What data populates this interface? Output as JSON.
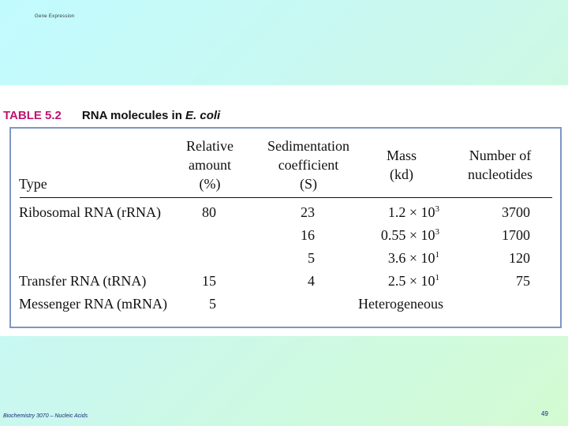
{
  "slide": {
    "header": "Gene Expression",
    "footer": "Biochemistry 3070 – Nucleic Acids",
    "page_number": "49"
  },
  "table": {
    "number": "TABLE 5.2",
    "title_prefix": "RNA molecules in ",
    "title_species": "E. coli",
    "headers": {
      "type": "Type",
      "relative": [
        "Relative",
        "amount",
        "(%)"
      ],
      "sediment": [
        "Sedimentation",
        "coefficient",
        "(S)"
      ],
      "mass": [
        "Mass",
        "(kd)"
      ],
      "nucleotides": [
        "Number of",
        "nucleotides"
      ]
    },
    "rows": [
      {
        "type": "Ribosomal RNA (rRNA)",
        "relative": "80",
        "sediment": "23",
        "mass_base": "1.2 × 10",
        "mass_exp": "3",
        "nucleotides": "3700"
      },
      {
        "type": "",
        "relative": "",
        "sediment": "16",
        "mass_base": "0.55 × 10",
        "mass_exp": "3",
        "nucleotides": "1700"
      },
      {
        "type": "",
        "relative": "",
        "sediment": "5",
        "mass_base": "3.6 × 10",
        "mass_exp": "1",
        "nucleotides": "120"
      },
      {
        "type": "Transfer RNA (tRNA)",
        "relative": "15",
        "sediment": "4",
        "mass_base": "2.5 × 10",
        "mass_exp": "1",
        "nucleotides": "75"
      },
      {
        "type": "Messenger RNA (mRNA)",
        "relative": "5",
        "sediment": "",
        "mass_base": "Heterogeneous",
        "mass_exp": "",
        "nucleotides": ""
      }
    ]
  }
}
